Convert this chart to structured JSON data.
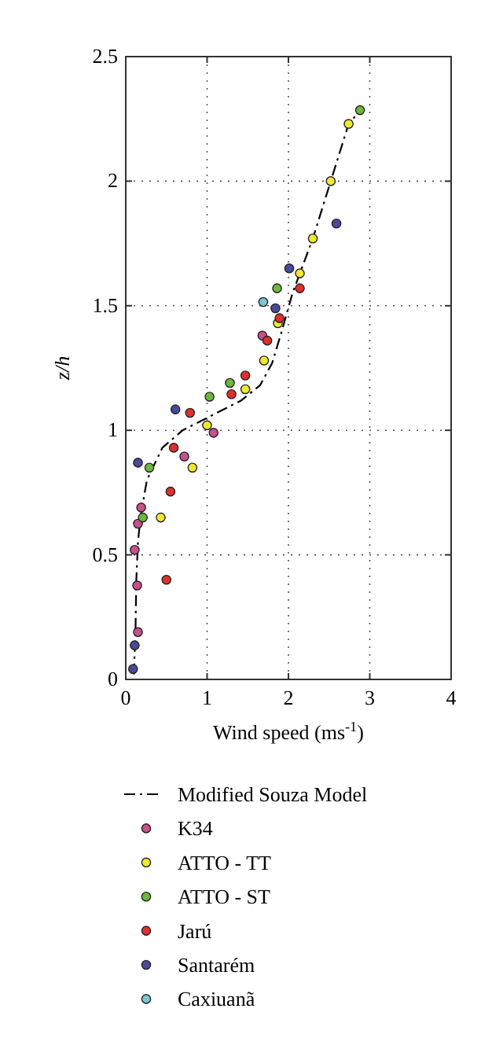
{
  "chart_data": {
    "type": "scatter",
    "xlabel": "Wind speed (ms$^{-1}$)",
    "ylabel": "z/h",
    "xlim": [
      0,
      4
    ],
    "xticks": [
      0,
      1,
      2,
      3,
      4
    ],
    "ylim": [
      0,
      2.5
    ],
    "yticks": [
      0,
      0.5,
      1,
      1.5,
      2,
      2.5
    ],
    "grid": true,
    "legend": "bottom",
    "series": [
      {
        "name": "Modified Souza Model",
        "type": "line",
        "line_style": "dashed",
        "color": "#000000",
        "x": [
          0.1,
          0.12,
          0.13,
          0.15,
          0.18,
          0.26,
          0.45,
          0.7,
          1.0,
          1.42,
          1.65,
          1.8,
          1.92,
          2.05,
          2.3,
          2.52,
          2.74,
          2.9
        ],
        "values": [
          0.02,
          0.2,
          0.4,
          0.55,
          0.65,
          0.8,
          0.93,
          1.0,
          1.05,
          1.12,
          1.18,
          1.27,
          1.4,
          1.55,
          1.77,
          2.0,
          2.23,
          2.29
        ]
      },
      {
        "name": "K34",
        "marker": "circle",
        "color": "#c8508c",
        "x": [
          1.68,
          1.08,
          0.72,
          0.19,
          0.15,
          0.11,
          0.14,
          0.15
        ],
        "values": [
          1.38,
          0.99,
          0.895,
          0.69,
          0.625,
          0.52,
          0.377,
          0.19
        ]
      },
      {
        "name": "ATTO - TT",
        "marker": "circle",
        "color": "#f0e830",
        "x": [
          2.74,
          2.52,
          2.3,
          2.14,
          1.87,
          1.7,
          1.47,
          1.0,
          0.82,
          0.43
        ],
        "values": [
          2.23,
          2.0,
          1.77,
          1.63,
          1.43,
          1.28,
          1.165,
          1.02,
          0.85,
          0.65
        ]
      },
      {
        "name": "ATTO - ST",
        "marker": "circle",
        "color": "#6cb83c",
        "x": [
          2.88,
          1.86,
          1.28,
          1.03,
          0.29,
          0.21
        ],
        "values": [
          2.285,
          1.57,
          1.19,
          1.135,
          0.85,
          0.65
        ]
      },
      {
        "name": "Jarú",
        "marker": "circle",
        "color": "#e0302c",
        "x": [
          2.14,
          1.89,
          1.74,
          1.47,
          1.3,
          0.79,
          0.59,
          0.55,
          0.5
        ],
        "values": [
          1.57,
          1.45,
          1.36,
          1.22,
          1.145,
          1.07,
          0.93,
          0.754,
          0.4
        ]
      },
      {
        "name": "Santarém",
        "marker": "circle",
        "color": "#4a4a9a",
        "x": [
          2.59,
          2.01,
          1.84,
          0.61,
          0.15,
          0.11,
          0.09
        ],
        "values": [
          1.83,
          1.65,
          1.49,
          1.084,
          0.87,
          0.137,
          0.042
        ]
      },
      {
        "name": "Caxiuanã",
        "marker": "circle",
        "color": "#7cc8d0",
        "x": [
          1.69
        ],
        "values": [
          1.515
        ]
      }
    ]
  }
}
